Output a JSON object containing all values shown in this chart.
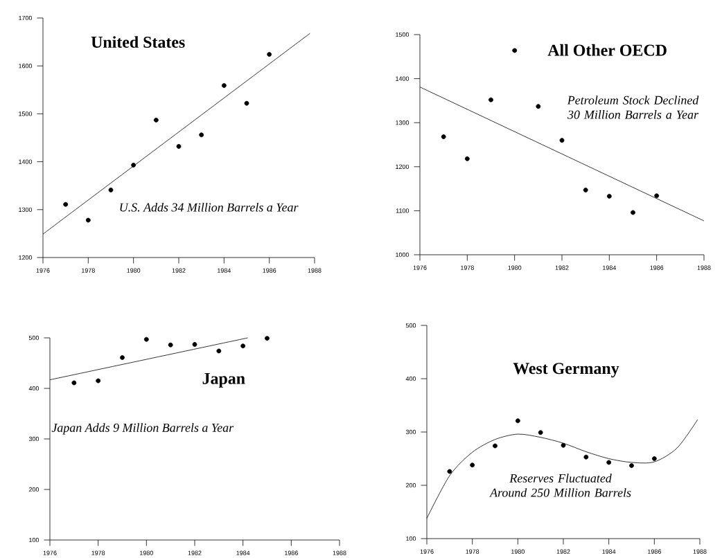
{
  "chart_data": [
    {
      "type": "scatter",
      "title": "United States",
      "annotations": [
        "U.S. Adds 34 Million Barrels a Year"
      ],
      "xlim": [
        1976,
        1988
      ],
      "ylim": [
        1200,
        1700
      ],
      "xticks": [
        1976,
        1978,
        1980,
        1982,
        1984,
        1986,
        1988
      ],
      "yticks": [
        1200,
        1300,
        1400,
        1500,
        1600,
        1700
      ],
      "series": [
        {
          "marker": "circle",
          "color": "#000000",
          "x": [
            1977,
            1978,
            1979,
            1980,
            1981,
            1982,
            1983,
            1984,
            1985,
            1986
          ],
          "values": [
            1311,
            1278,
            1341,
            1393,
            1487,
            1432,
            1456,
            1559,
            1522,
            1624
          ]
        },
        {
          "type": "line",
          "marker": "none",
          "color": "#000000",
          "x": [
            1976,
            1987.8
          ],
          "values": [
            1249,
            1668
          ]
        }
      ]
    },
    {
      "type": "scatter",
      "title": "All Other OECD",
      "annotations": [
        "Petroleum Stock Declined 30 Million Barrels a Year"
      ],
      "xlim": [
        1976,
        1988
      ],
      "ylim": [
        1000,
        1500
      ],
      "xticks": [
        1976,
        1978,
        1980,
        1982,
        1984,
        1986,
        1988
      ],
      "yticks": [
        1000,
        1100,
        1200,
        1300,
        1400,
        1500
      ],
      "series": [
        {
          "marker": "circle",
          "color": "#000000",
          "x": [
            1977,
            1978,
            1979,
            1980,
            1981,
            1982,
            1983,
            1984,
            1985,
            1986
          ],
          "values": [
            1268,
            1218,
            1352,
            1464,
            1337,
            1260,
            1147,
            1133,
            1096,
            1134
          ]
        },
        {
          "type": "line",
          "marker": "none",
          "color": "#000000",
          "x": [
            1976,
            1988
          ],
          "values": [
            1381,
            1077
          ]
        }
      ]
    },
    {
      "type": "scatter",
      "title": "Japan",
      "annotations": [
        "Japan Adds 9 Million Barrels a Year"
      ],
      "xlim": [
        1976,
        1988
      ],
      "ylim": [
        100,
        500
      ],
      "xticks": [
        1976,
        1978,
        1980,
        1982,
        1984,
        1986,
        1988
      ],
      "yticks": [
        100,
        200,
        300,
        400,
        500
      ],
      "series": [
        {
          "marker": "circle",
          "color": "#000000",
          "x": [
            1977,
            1978,
            1979,
            1980,
            1981,
            1982,
            1983,
            1984,
            1985
          ],
          "values": [
            411,
            415,
            461,
            497,
            486,
            487,
            474,
            484,
            499
          ]
        },
        {
          "type": "line",
          "marker": "none",
          "color": "#000000",
          "x": [
            1976,
            1984.2
          ],
          "values": [
            417,
            500
          ]
        }
      ]
    },
    {
      "type": "scatter",
      "title": "West Germany",
      "annotations": [
        "Reserves Fluctuated Around 250 Million Barrels"
      ],
      "xlim": [
        1976,
        1988
      ],
      "ylim": [
        100,
        500
      ],
      "xticks": [
        1976,
        1978,
        1980,
        1982,
        1984,
        1986,
        1988
      ],
      "yticks": [
        100,
        200,
        300,
        400,
        500
      ],
      "series": [
        {
          "marker": "circle",
          "color": "#000000",
          "x": [
            1977,
            1978,
            1979,
            1980,
            1981,
            1982,
            1983,
            1984,
            1985,
            1986
          ],
          "values": [
            226,
            238,
            274,
            321,
            299,
            275,
            253,
            243,
            237,
            250
          ]
        },
        {
          "type": "line",
          "marker": "none",
          "color": "#000000",
          "x": [
            1976,
            1977,
            1978,
            1979,
            1980,
            1981,
            1982,
            1983,
            1984,
            1985,
            1986,
            1987,
            1987.9
          ],
          "values": [
            138,
            218,
            262,
            286,
            296,
            290,
            279,
            263,
            250,
            243,
            244,
            270,
            323
          ]
        }
      ]
    }
  ]
}
